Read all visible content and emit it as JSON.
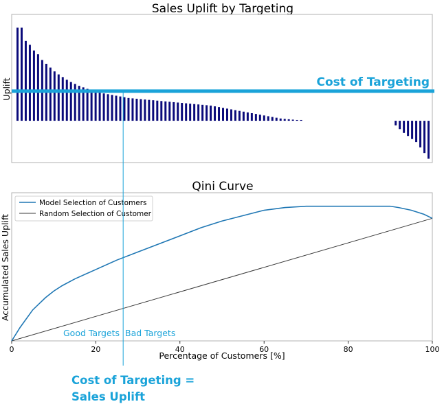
{
  "chart_data": [
    {
      "type": "bar",
      "title": "Sales Uplift by Targeting",
      "ylabel": "Uplift",
      "xlabel": "",
      "grid": false,
      "baseline": 0,
      "ylim": [
        -1.1,
        2.8
      ],
      "values": [
        2.45,
        2.45,
        2.1,
        2.0,
        1.85,
        1.75,
        1.6,
        1.5,
        1.4,
        1.3,
        1.22,
        1.15,
        1.08,
        1.02,
        0.97,
        0.92,
        0.88,
        0.84,
        0.8,
        0.77,
        0.74,
        0.72,
        0.7,
        0.68,
        0.66,
        0.64,
        0.62,
        0.6,
        0.59,
        0.58,
        0.57,
        0.56,
        0.55,
        0.54,
        0.53,
        0.52,
        0.51,
        0.5,
        0.49,
        0.48,
        0.47,
        0.46,
        0.45,
        0.44,
        0.43,
        0.42,
        0.41,
        0.4,
        0.38,
        0.36,
        0.34,
        0.32,
        0.3,
        0.28,
        0.26,
        0.24,
        0.22,
        0.2,
        0.18,
        0.16,
        0.14,
        0.12,
        0.1,
        0.08,
        0.06,
        0.05,
        0.04,
        0.03,
        0.02,
        0.02,
        0,
        0,
        0,
        0,
        0,
        0,
        0,
        0,
        0,
        0,
        0,
        0,
        0,
        0,
        0,
        0,
        0,
        0,
        0,
        0,
        0,
        0,
        -0.12,
        -0.22,
        -0.32,
        -0.4,
        -0.48,
        -0.56,
        -0.7,
        -0.85,
        -1.0
      ],
      "threshold": {
        "label": "Cost of Targeting",
        "value": 0.78
      }
    },
    {
      "type": "line",
      "title": "Qini Curve",
      "xlabel": "Percentage of Customers [%]",
      "ylabel": "Accumulated Sales Uplift",
      "xlim": [
        0,
        100
      ],
      "ylim": [
        0,
        1.1
      ],
      "xticks": [
        "0",
        "20",
        "40",
        "60",
        "80",
        "100"
      ],
      "grid": false,
      "legend": "top-left",
      "series": [
        {
          "name": "Model Selection of Customers",
          "color": "#1f77b4",
          "x": [
            0,
            2,
            5,
            8,
            10,
            12,
            15,
            20,
            25,
            30,
            35,
            40,
            45,
            50,
            55,
            60,
            65,
            70,
            75,
            80,
            85,
            90,
            92,
            95,
            98,
            100
          ],
          "y": [
            0,
            0.1,
            0.23,
            0.32,
            0.37,
            0.41,
            0.46,
            0.53,
            0.6,
            0.66,
            0.72,
            0.78,
            0.84,
            0.89,
            0.93,
            0.97,
            0.99,
            1.0,
            1.0,
            1.0,
            1.0,
            1.0,
            0.99,
            0.97,
            0.94,
            0.91
          ]
        },
        {
          "name": "Random Selection of Customer",
          "color": "#3a3a3a",
          "x": [
            0,
            100
          ],
          "y": [
            0,
            0.91
          ]
        }
      ]
    }
  ],
  "annotations": {
    "cost_of_targeting": "Cost of Targeting",
    "good_targets": "Good Targets",
    "bad_targets": "Bad Targets",
    "callout_line1": "Cost of Targeting =",
    "callout_line2": "Sales Uplift",
    "accent_color": "#1aa3d9",
    "cutoff_percent": 26.5
  }
}
